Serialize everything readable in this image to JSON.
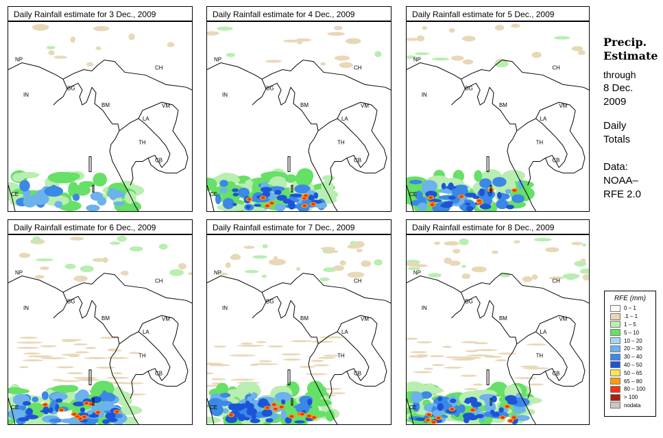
{
  "panels": [
    {
      "title": "Daily Rainfall estimate for  3 Dec., 2009",
      "intensity": 1
    },
    {
      "title": "Daily Rainfall estimate for  4 Dec., 2009",
      "intensity": 2
    },
    {
      "title": "Daily Rainfall estimate for  5 Dec., 2009",
      "intensity": 2
    },
    {
      "title": "Daily Rainfall estimate for  6 Dec., 2009",
      "intensity": 3
    },
    {
      "title": "Daily Rainfall estimate for  7 Dec., 2009",
      "intensity": 3
    },
    {
      "title": "Daily Rainfall estimate for  8 Dec., 2009",
      "intensity": 3
    }
  ],
  "country_labels": [
    "NP",
    "CH",
    "IN",
    "BG",
    "BM",
    "VM",
    "LA",
    "TH",
    "CB",
    "CE"
  ],
  "side": {
    "heading1": "Precip.",
    "heading2": "Estimate",
    "through": "through",
    "date1": "8 Dec.",
    "date2": "2009",
    "daily1": "Daily",
    "daily2": "Totals",
    "data1": "Data:",
    "data2": "NOAA–",
    "data3": "RFE 2.0"
  },
  "legend": {
    "title": "RFE (mm)",
    "items": [
      {
        "label": "0 – 1",
        "color": "#fafaf5"
      },
      {
        "label": ".1 – 1",
        "color": "#e8d8b8"
      },
      {
        "label": "1 – 5",
        "color": "#b8eeb0"
      },
      {
        "label": "5 – 10",
        "color": "#66e066"
      },
      {
        "label": "10 – 20",
        "color": "#a8d4f0"
      },
      {
        "label": "20 – 30",
        "color": "#6cb2ec"
      },
      {
        "label": "30 – 40",
        "color": "#3c88e6"
      },
      {
        "label": "40 – 50",
        "color": "#1c54d8"
      },
      {
        "label": "50 – 65",
        "color": "#ffe45c"
      },
      {
        "label": "65 – 80",
        "color": "#ff9c10"
      },
      {
        "label": "80 – 100",
        "color": "#ee3410"
      },
      {
        "label": "> 100",
        "color": "#a82010"
      },
      {
        "label": "nodata",
        "color": "#c8c8c0"
      }
    ]
  }
}
